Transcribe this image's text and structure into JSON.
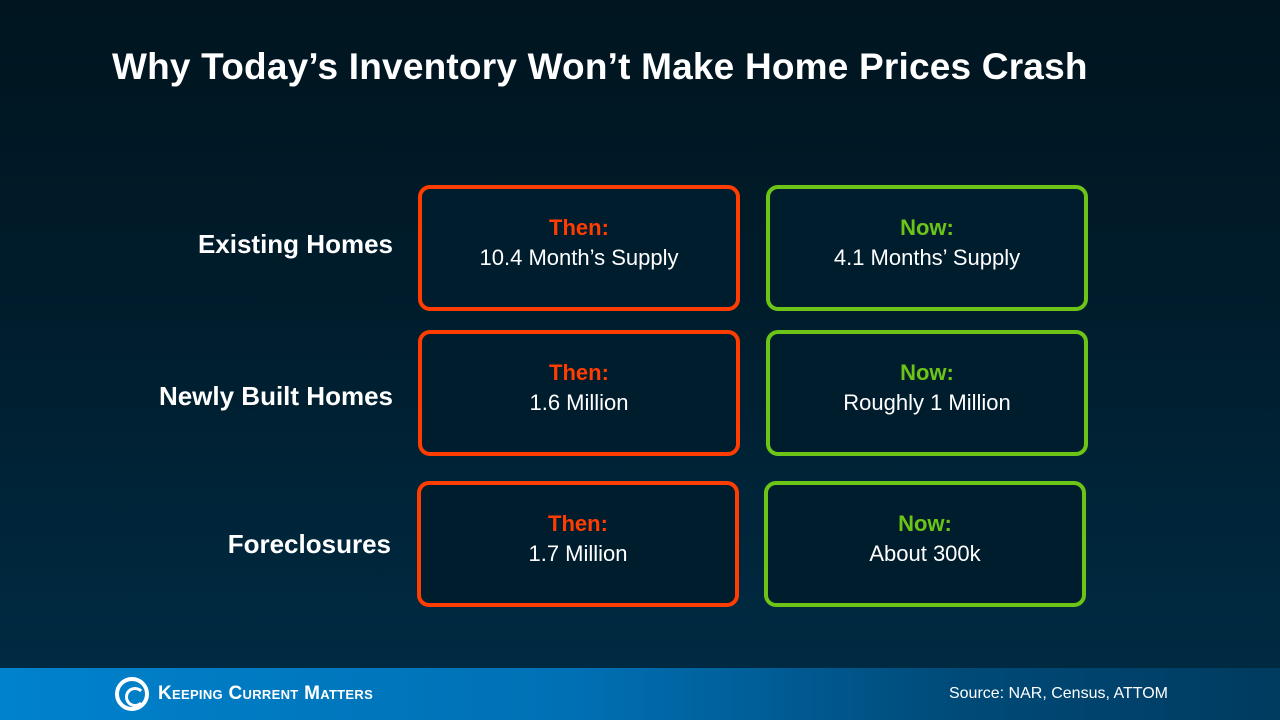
{
  "title": "Why Today’s Inventory Won’t Make Home Prices Crash",
  "colors": {
    "then": "#ff3d00",
    "now": "#6cc417"
  },
  "rows": [
    {
      "label": "Existing Homes",
      "then_heading": "Then:",
      "then_value": "10.4 Month’s Supply",
      "now_heading": "Now:",
      "now_value": "4.1 Months’ Supply"
    },
    {
      "label": "Newly Built Homes",
      "then_heading": "Then:",
      "then_value": "1.6 Million",
      "now_heading": "Now:",
      "now_value": "Roughly 1 Million"
    },
    {
      "label": "Foreclosures",
      "then_heading": "Then:",
      "then_value": "1.7 Million",
      "now_heading": "Now:",
      "now_value": "About 300k"
    }
  ],
  "footer": {
    "logo_text": "Keeping Current Matters",
    "source": "Source: NAR, Census, ATTOM"
  }
}
